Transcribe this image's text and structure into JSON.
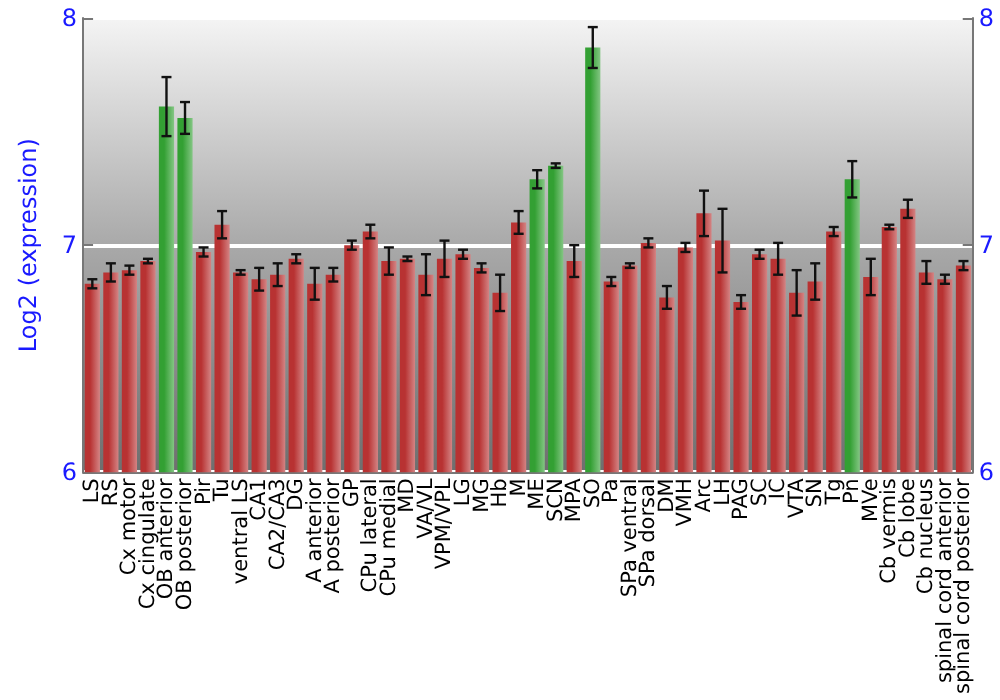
{
  "chart_data": {
    "type": "bar",
    "ylabel": "Log2 (expression)",
    "categories": [
      "LS",
      "RS",
      "Cx motor",
      "Cx cingulate",
      "OB anterior",
      "OB posterior",
      "Pir",
      "Tu",
      "ventral LS",
      "CA1",
      "CA2/CA3",
      "DG",
      "A anterior",
      "A posterior",
      "GP",
      "CPu lateral",
      "CPu medial",
      "MD",
      "VA/VL",
      "VPM/VPL",
      "LG",
      "MG",
      "Hb",
      "M",
      "ME",
      "SCN",
      "MPA",
      "SO",
      "Pa",
      "SPa ventral",
      "SPa dorsal",
      "DM",
      "VMH",
      "Arc",
      "LH",
      "PAG",
      "SC",
      "IC",
      "VTA",
      "SN",
      "Tg",
      "Pn",
      "MVe",
      "Cb vermis",
      "Cb lobe",
      "Cb nucleus",
      "spinal cord anterior",
      "spinal cord posterior"
    ],
    "values": [
      6.83,
      6.88,
      6.89,
      6.93,
      7.61,
      7.56,
      6.97,
      7.09,
      6.88,
      6.85,
      6.87,
      6.94,
      6.83,
      6.87,
      7.0,
      7.06,
      6.93,
      6.94,
      6.87,
      6.94,
      6.96,
      6.9,
      6.79,
      7.1,
      7.29,
      7.35,
      6.93,
      7.87,
      6.84,
      6.91,
      7.01,
      6.77,
      6.99,
      7.14,
      7.02,
      6.75,
      6.96,
      6.94,
      6.79,
      6.84,
      7.06,
      7.29,
      6.86,
      7.08,
      7.16,
      6.88,
      6.85,
      6.91
    ],
    "errors": [
      0.02,
      0.04,
      0.02,
      0.01,
      0.13,
      0.07,
      0.02,
      0.06,
      0.01,
      0.05,
      0.05,
      0.02,
      0.07,
      0.03,
      0.02,
      0.03,
      0.06,
      0.01,
      0.09,
      0.08,
      0.02,
      0.02,
      0.08,
      0.05,
      0.04,
      0.01,
      0.07,
      0.09,
      0.02,
      0.01,
      0.02,
      0.05,
      0.02,
      0.1,
      0.14,
      0.03,
      0.02,
      0.07,
      0.1,
      0.08,
      0.02,
      0.08,
      0.08,
      0.01,
      0.04,
      0.05,
      0.02,
      0.02
    ],
    "colors": [
      "#b83232",
      "#b83232",
      "#b83232",
      "#b83232",
      "#33a033",
      "#33a033",
      "#b83232",
      "#b83232",
      "#b83232",
      "#b83232",
      "#b83232",
      "#b83232",
      "#b83232",
      "#b83232",
      "#b83232",
      "#b83232",
      "#b83232",
      "#b83232",
      "#b83232",
      "#b83232",
      "#b83232",
      "#b83232",
      "#b83232",
      "#b83232",
      "#33a033",
      "#33a033",
      "#b83232",
      "#33a033",
      "#b83232",
      "#b83232",
      "#b83232",
      "#b83232",
      "#b83232",
      "#b83232",
      "#b83232",
      "#b83232",
      "#b83232",
      "#b83232",
      "#b83232",
      "#b83232",
      "#b83232",
      "#33a033",
      "#b83232",
      "#b83232",
      "#b83232",
      "#b83232",
      "#b83232",
      "#b83232"
    ],
    "ylim": [
      6,
      8
    ],
    "yticks": [
      6,
      7,
      8
    ],
    "y2lim": [
      6,
      8
    ],
    "y2ticks": [
      6,
      7,
      8
    ],
    "grid": "y"
  }
}
